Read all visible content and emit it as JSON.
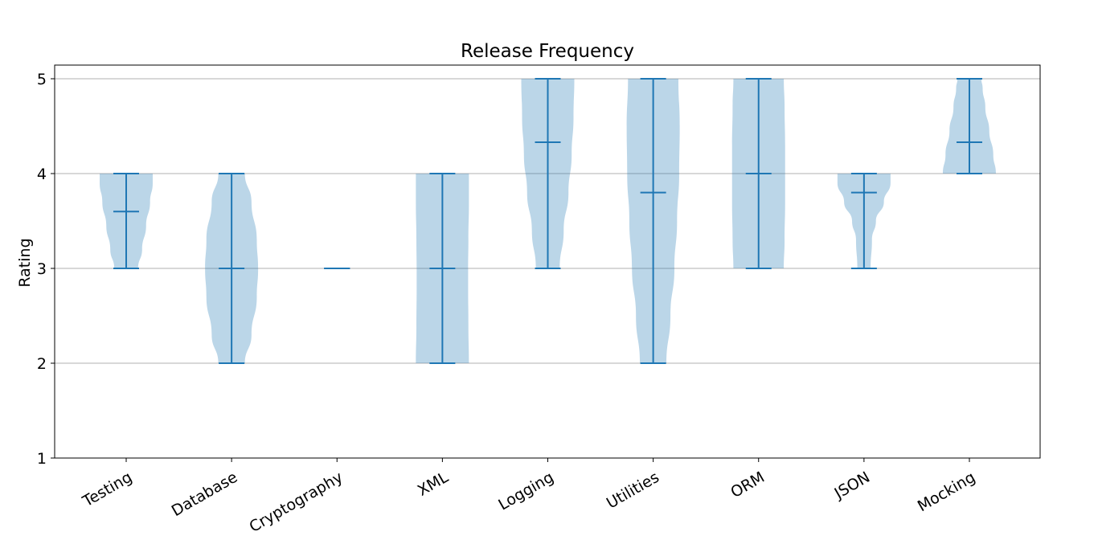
{
  "chart_data": {
    "type": "violin",
    "title": "Release Frequency",
    "xlabel": "",
    "ylabel": "Rating",
    "ylim": [
      1,
      5
    ],
    "yticks": [
      "1",
      "2",
      "3",
      "4",
      "5"
    ],
    "grid": "horizontal",
    "body_color": "#1f77b4",
    "categories": [
      "Testing",
      "Database",
      "Cryptography",
      "XML",
      "Logging",
      "Utilities",
      "ORM",
      "JSON",
      "Mocking"
    ],
    "series": [
      {
        "category": "Testing",
        "min": 3,
        "max": 4,
        "mean": 3.6,
        "density": [
          [
            3.0,
            0.45
          ],
          [
            3.2,
            0.6
          ],
          [
            3.45,
            0.75
          ],
          [
            3.7,
            0.9
          ],
          [
            3.9,
            1.0
          ],
          [
            4.0,
            1.0
          ]
        ]
      },
      {
        "category": "Database",
        "min": 2,
        "max": 4,
        "mean": 3.0,
        "density": [
          [
            2.0,
            0.5
          ],
          [
            2.3,
            0.75
          ],
          [
            2.7,
            0.95
          ],
          [
            3.0,
            1.0
          ],
          [
            3.3,
            0.95
          ],
          [
            3.7,
            0.75
          ],
          [
            4.0,
            0.5
          ]
        ]
      },
      {
        "category": "Cryptography",
        "min": 3,
        "max": 3,
        "mean": 3.0,
        "density": []
      },
      {
        "category": "XML",
        "min": 2,
        "max": 4,
        "mean": 3.0,
        "density": [
          [
            2.0,
            1.0
          ],
          [
            2.4,
            0.98
          ],
          [
            2.8,
            0.97
          ],
          [
            3.0,
            0.97
          ],
          [
            3.3,
            0.98
          ],
          [
            3.7,
            1.0
          ],
          [
            4.0,
            1.0
          ]
        ]
      },
      {
        "category": "Logging",
        "min": 3,
        "max": 5,
        "mean": 4.33,
        "density": [
          [
            3.0,
            0.45
          ],
          [
            3.4,
            0.6
          ],
          [
            3.8,
            0.78
          ],
          [
            4.2,
            0.9
          ],
          [
            4.6,
            0.97
          ],
          [
            5.0,
            1.0
          ]
        ]
      },
      {
        "category": "Utilities",
        "min": 2,
        "max": 5,
        "mean": 3.8,
        "density": [
          [
            2.0,
            0.5
          ],
          [
            2.5,
            0.65
          ],
          [
            3.0,
            0.8
          ],
          [
            3.5,
            0.9
          ],
          [
            4.0,
            0.98
          ],
          [
            4.5,
            1.0
          ],
          [
            5.0,
            0.95
          ]
        ]
      },
      {
        "category": "ORM",
        "min": 3,
        "max": 5,
        "mean": 4.0,
        "density": [
          [
            3.0,
            0.95
          ],
          [
            3.3,
            0.98
          ],
          [
            3.7,
            1.0
          ],
          [
            4.0,
            1.0
          ],
          [
            4.3,
            1.0
          ],
          [
            4.7,
            0.98
          ],
          [
            5.0,
            0.95
          ]
        ]
      },
      {
        "category": "JSON",
        "min": 3,
        "max": 4,
        "mean": 3.8,
        "density": [
          [
            3.0,
            0.25
          ],
          [
            3.3,
            0.3
          ],
          [
            3.5,
            0.45
          ],
          [
            3.7,
            0.75
          ],
          [
            3.9,
            1.0
          ],
          [
            4.0,
            1.0
          ]
        ]
      },
      {
        "category": "Mocking",
        "min": 4,
        "max": 5,
        "mean": 4.33,
        "density": [
          [
            4.0,
            1.0
          ],
          [
            4.2,
            0.9
          ],
          [
            4.45,
            0.75
          ],
          [
            4.7,
            0.6
          ],
          [
            4.9,
            0.5
          ],
          [
            5.0,
            0.45
          ]
        ]
      }
    ]
  }
}
